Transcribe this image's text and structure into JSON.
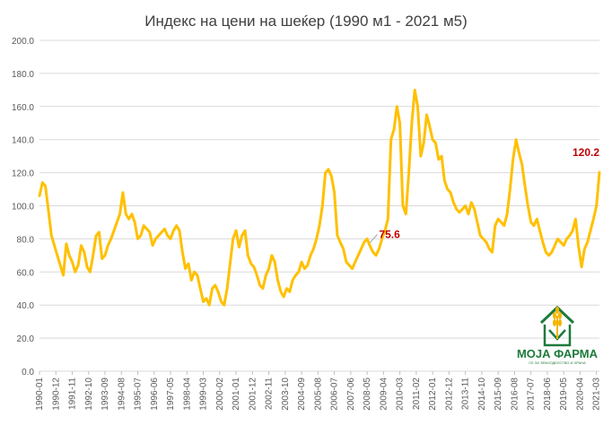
{
  "chart_data": {
    "type": "line",
    "title": "Индекс на цени на шеќер (1990 м1 - 2021 м5)",
    "xlabel": "",
    "ylabel": "",
    "ylim": [
      0,
      200
    ],
    "yticks": [
      "0.0",
      "20.0",
      "40.0",
      "60.0",
      "80.0",
      "100.0",
      "120.0",
      "140.0",
      "160.0",
      "180.0",
      "200.0"
    ],
    "x_tick_labels": [
      "1990-01",
      "1990-12",
      "1991-11",
      "1992-10",
      "1993-09",
      "1994-08",
      "1995-07",
      "1996-06",
      "1997-05",
      "1998-04",
      "1999-03",
      "2000-02",
      "2001-01",
      "2001-12",
      "2002-11",
      "2003-10",
      "2004-09",
      "2005-08",
      "2006-07",
      "2007-06",
      "2008-05",
      "2009-04",
      "2010-03",
      "2011-02",
      "2012-01",
      "2012-12",
      "2013-11",
      "2014-10",
      "2015-09",
      "2016-08",
      "2017-07",
      "2018-06",
      "2019-05",
      "2020-04",
      "2021-03"
    ],
    "grid": true,
    "line_color": "#ffc000",
    "annotation_color": "#c00000",
    "annotations": [
      {
        "label": "75.6",
        "x": "2008-07",
        "y": 75.6
      },
      {
        "label": "120.2",
        "x": "2021-05",
        "y": 120.2
      }
    ],
    "series": [
      {
        "x_start": "1990-01",
        "x_end": "2021-05",
        "anchors": [
          [
            "1990-01",
            106
          ],
          [
            "1990-03",
            114
          ],
          [
            "1990-05",
            112
          ],
          [
            "1990-07",
            97
          ],
          [
            "1990-09",
            82
          ],
          [
            "1990-11",
            76
          ],
          [
            "1991-01",
            70
          ],
          [
            "1991-03",
            64
          ],
          [
            "1991-05",
            58
          ],
          [
            "1991-07",
            77
          ],
          [
            "1991-09",
            70
          ],
          [
            "1991-11",
            66
          ],
          [
            "1992-01",
            60
          ],
          [
            "1992-03",
            64
          ],
          [
            "1992-05",
            76
          ],
          [
            "1992-07",
            72
          ],
          [
            "1992-09",
            63
          ],
          [
            "1992-11",
            60
          ],
          [
            "1993-01",
            70
          ],
          [
            "1993-03",
            82
          ],
          [
            "1993-05",
            84
          ],
          [
            "1993-07",
            68
          ],
          [
            "1993-09",
            70
          ],
          [
            "1993-11",
            76
          ],
          [
            "1994-01",
            80
          ],
          [
            "1994-03",
            85
          ],
          [
            "1994-05",
            90
          ],
          [
            "1994-07",
            95
          ],
          [
            "1994-09",
            108
          ],
          [
            "1994-11",
            95
          ],
          [
            "1995-01",
            92
          ],
          [
            "1995-03",
            95
          ],
          [
            "1995-05",
            90
          ],
          [
            "1995-07",
            80
          ],
          [
            "1995-09",
            82
          ],
          [
            "1995-11",
            88
          ],
          [
            "1996-01",
            86
          ],
          [
            "1996-03",
            84
          ],
          [
            "1996-05",
            76
          ],
          [
            "1996-07",
            80
          ],
          [
            "1996-09",
            82
          ],
          [
            "1996-11",
            84
          ],
          [
            "1997-01",
            86
          ],
          [
            "1997-03",
            82
          ],
          [
            "1997-05",
            80
          ],
          [
            "1997-07",
            85
          ],
          [
            "1997-09",
            88
          ],
          [
            "1997-11",
            85
          ],
          [
            "1998-01",
            72
          ],
          [
            "1998-03",
            62
          ],
          [
            "1998-05",
            65
          ],
          [
            "1998-07",
            55
          ],
          [
            "1998-09",
            60
          ],
          [
            "1998-11",
            58
          ],
          [
            "1999-01",
            50
          ],
          [
            "1999-03",
            42
          ],
          [
            "1999-05",
            44
          ],
          [
            "1999-07",
            40
          ],
          [
            "1999-09",
            50
          ],
          [
            "1999-11",
            52
          ],
          [
            "2000-01",
            48
          ],
          [
            "2000-03",
            42
          ],
          [
            "2000-05",
            40
          ],
          [
            "2000-07",
            50
          ],
          [
            "2000-09",
            65
          ],
          [
            "2000-11",
            80
          ],
          [
            "2001-01",
            85
          ],
          [
            "2001-03",
            75
          ],
          [
            "2001-05",
            82
          ],
          [
            "2001-07",
            85
          ],
          [
            "2001-09",
            70
          ],
          [
            "2001-11",
            65
          ],
          [
            "2002-01",
            63
          ],
          [
            "2002-03",
            58
          ],
          [
            "2002-05",
            52
          ],
          [
            "2002-07",
            50
          ],
          [
            "2002-09",
            58
          ],
          [
            "2002-11",
            62
          ],
          [
            "2003-01",
            70
          ],
          [
            "2003-03",
            66
          ],
          [
            "2003-05",
            55
          ],
          [
            "2003-07",
            48
          ],
          [
            "2003-09",
            45
          ],
          [
            "2003-11",
            50
          ],
          [
            "2004-01",
            48
          ],
          [
            "2004-03",
            55
          ],
          [
            "2004-05",
            58
          ],
          [
            "2004-07",
            60
          ],
          [
            "2004-09",
            66
          ],
          [
            "2004-11",
            62
          ],
          [
            "2005-01",
            64
          ],
          [
            "2005-03",
            70
          ],
          [
            "2005-05",
            74
          ],
          [
            "2005-07",
            80
          ],
          [
            "2005-09",
            88
          ],
          [
            "2005-11",
            100
          ],
          [
            "2006-01",
            120
          ],
          [
            "2006-03",
            122
          ],
          [
            "2006-05",
            118
          ],
          [
            "2006-07",
            108
          ],
          [
            "2006-09",
            82
          ],
          [
            "2006-11",
            78
          ],
          [
            "2007-01",
            74
          ],
          [
            "2007-03",
            66
          ],
          [
            "2007-05",
            64
          ],
          [
            "2007-07",
            62
          ],
          [
            "2007-09",
            66
          ],
          [
            "2007-11",
            70
          ],
          [
            "2008-01",
            74
          ],
          [
            "2008-03",
            78
          ],
          [
            "2008-05",
            80
          ],
          [
            "2008-07",
            75.6
          ],
          [
            "2008-09",
            72
          ],
          [
            "2008-11",
            70
          ],
          [
            "2009-01",
            74
          ],
          [
            "2009-03",
            80
          ],
          [
            "2009-05",
            85
          ],
          [
            "2009-07",
            92
          ],
          [
            "2009-09",
            140
          ],
          [
            "2009-11",
            146
          ],
          [
            "2010-01",
            160
          ],
          [
            "2010-03",
            150
          ],
          [
            "2010-05",
            100
          ],
          [
            "2010-07",
            95
          ],
          [
            "2010-09",
            120
          ],
          [
            "2010-11",
            150
          ],
          [
            "2011-01",
            170
          ],
          [
            "2011-03",
            160
          ],
          [
            "2011-05",
            130
          ],
          [
            "2011-07",
            138
          ],
          [
            "2011-09",
            155
          ],
          [
            "2011-11",
            148
          ],
          [
            "2012-01",
            140
          ],
          [
            "2012-03",
            138
          ],
          [
            "2012-05",
            128
          ],
          [
            "2012-07",
            130
          ],
          [
            "2012-09",
            115
          ],
          [
            "2012-11",
            110
          ],
          [
            "2013-01",
            108
          ],
          [
            "2013-03",
            102
          ],
          [
            "2013-05",
            98
          ],
          [
            "2013-07",
            96
          ],
          [
            "2013-09",
            98
          ],
          [
            "2013-11",
            100
          ],
          [
            "2014-01",
            95
          ],
          [
            "2014-03",
            102
          ],
          [
            "2014-05",
            98
          ],
          [
            "2014-07",
            90
          ],
          [
            "2014-09",
            82
          ],
          [
            "2014-11",
            80
          ],
          [
            "2015-01",
            78
          ],
          [
            "2015-03",
            74
          ],
          [
            "2015-05",
            72
          ],
          [
            "2015-07",
            88
          ],
          [
            "2015-09",
            92
          ],
          [
            "2015-11",
            90
          ],
          [
            "2016-01",
            88
          ],
          [
            "2016-03",
            95
          ],
          [
            "2016-05",
            110
          ],
          [
            "2016-07",
            128
          ],
          [
            "2016-09",
            140
          ],
          [
            "2016-11",
            132
          ],
          [
            "2017-01",
            125
          ],
          [
            "2017-03",
            112
          ],
          [
            "2017-05",
            100
          ],
          [
            "2017-07",
            90
          ],
          [
            "2017-09",
            88
          ],
          [
            "2017-11",
            92
          ],
          [
            "2018-01",
            85
          ],
          [
            "2018-03",
            78
          ],
          [
            "2018-05",
            72
          ],
          [
            "2018-07",
            70
          ],
          [
            "2018-09",
            72
          ],
          [
            "2018-11",
            76
          ],
          [
            "2019-01",
            80
          ],
          [
            "2019-03",
            78
          ],
          [
            "2019-05",
            76
          ],
          [
            "2019-07",
            80
          ],
          [
            "2019-09",
            82
          ],
          [
            "2019-11",
            85
          ],
          [
            "2020-01",
            92
          ],
          [
            "2020-03",
            75
          ],
          [
            "2020-05",
            63
          ],
          [
            "2020-07",
            74
          ],
          [
            "2020-09",
            78
          ],
          [
            "2020-11",
            85
          ],
          [
            "2021-01",
            92
          ],
          [
            "2021-03",
            100
          ],
          [
            "2021-05",
            120.2
          ]
        ]
      }
    ]
  },
  "logo": {
    "name": "МОЈА ФАРМА",
    "tagline": "СЕ ЗА ЗЕМЈОДЕЛСТВО И ХРАНА"
  }
}
